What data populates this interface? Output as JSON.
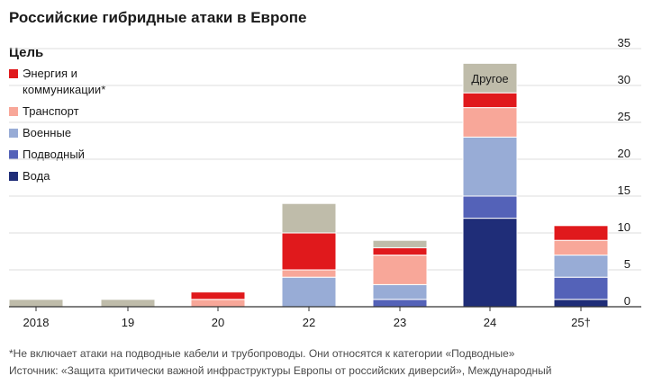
{
  "title": "Российские гибридные атаки в Европе",
  "legend": {
    "title": "Цель",
    "items": [
      {
        "label": "Энергия и коммуникации*",
        "color": "#e0191c"
      },
      {
        "label": "Транспорт",
        "color": "#f8a799"
      },
      {
        "label": "Военные",
        "color": "#98acd6"
      },
      {
        "label": "Подводный",
        "color": "#5462b8"
      },
      {
        "label": "Вода",
        "color": "#1f2d78"
      }
    ]
  },
  "footnote": "*Не включает атаки на подводные кабели и трубопроводы. Они относятся к категории «Подводные»",
  "source": "Источник: «Защита критически важной инфраструктуры Европы от российских диверсий», Международный",
  "chart_data": {
    "type": "bar",
    "stacked": true,
    "categories": [
      "2018",
      "19",
      "20",
      "22",
      "23",
      "24",
      "25†"
    ],
    "series": [
      {
        "name": "Вода",
        "color": "#1f2d78",
        "values": [
          0,
          0,
          0,
          0,
          0,
          12,
          1
        ]
      },
      {
        "name": "Подводный",
        "color": "#5462b8",
        "values": [
          0,
          0,
          0,
          0,
          1,
          3,
          3
        ]
      },
      {
        "name": "Военные",
        "color": "#98acd6",
        "values": [
          0,
          0,
          0,
          4,
          2,
          8,
          3
        ]
      },
      {
        "name": "Транспорт",
        "color": "#f8a799",
        "values": [
          0,
          0,
          1,
          1,
          4,
          4,
          2
        ]
      },
      {
        "name": "Энергия и коммуникации*",
        "color": "#e0191c",
        "values": [
          0,
          0,
          1,
          5,
          1,
          2,
          2
        ]
      },
      {
        "name": "Другое",
        "color": "#bfbcaa",
        "values": [
          1,
          1,
          0,
          4,
          1,
          4,
          0
        ]
      }
    ],
    "ylim": [
      0,
      35
    ],
    "yticks": [
      0,
      5,
      10,
      15,
      20,
      25,
      30,
      35
    ],
    "annotation": {
      "text": "Другое",
      "category": "24"
    },
    "grid": true,
    "y_axis_side": "right"
  }
}
